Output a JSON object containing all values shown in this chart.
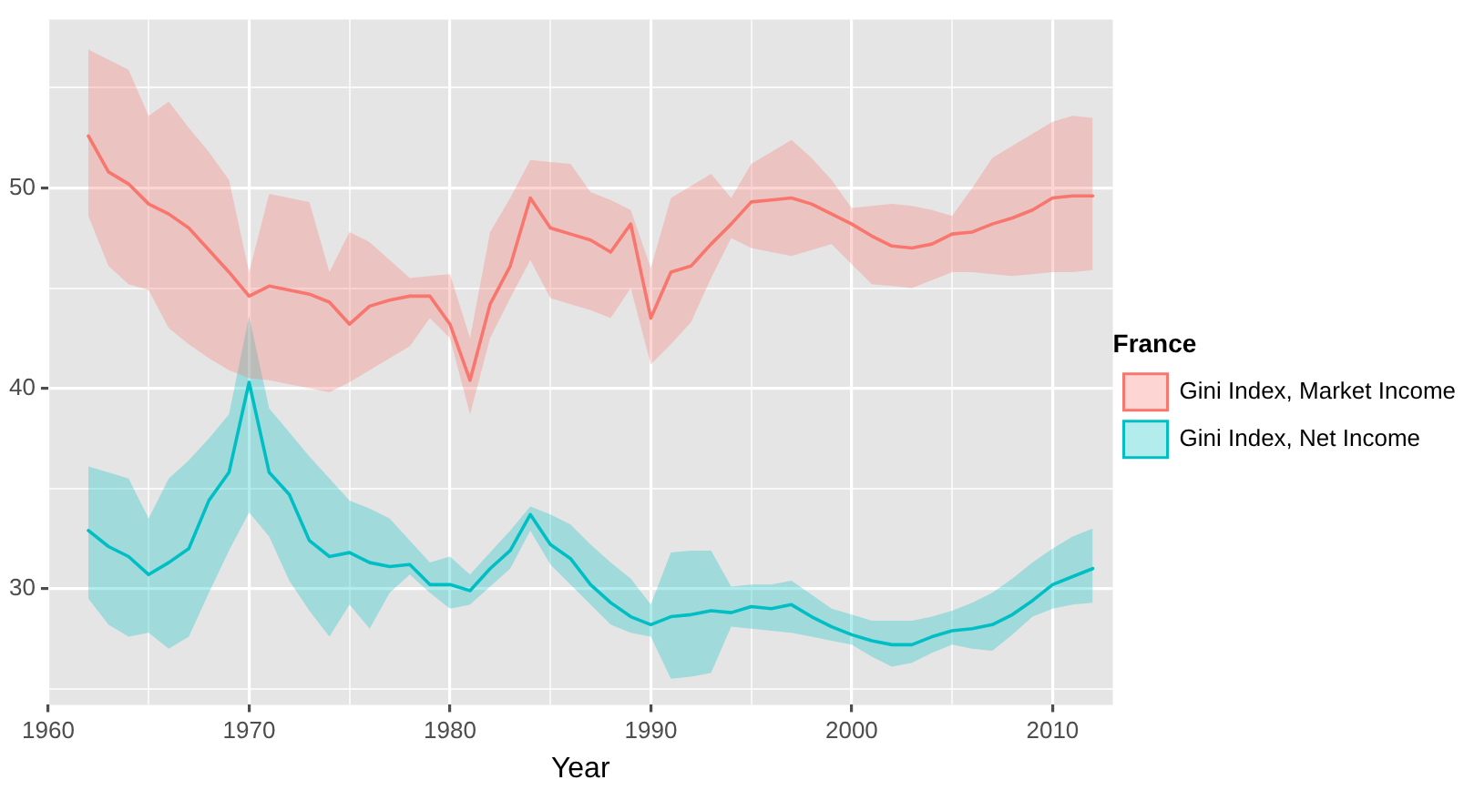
{
  "chart_data": {
    "type": "line",
    "xlabel": "Year",
    "legend_title": "France",
    "legend": "right",
    "grid": true,
    "marker": "none",
    "line_style": "solid",
    "x": [
      1962,
      1963,
      1964,
      1965,
      1966,
      1967,
      1968,
      1969,
      1970,
      1971,
      1972,
      1973,
      1974,
      1975,
      1976,
      1977,
      1978,
      1979,
      1980,
      1981,
      1982,
      1983,
      1984,
      1985,
      1986,
      1987,
      1988,
      1989,
      1990,
      1991,
      1992,
      1993,
      1994,
      1995,
      1996,
      1997,
      1998,
      1999,
      2000,
      2001,
      2002,
      2003,
      2004,
      2005,
      2006,
      2007,
      2008,
      2009,
      2010,
      2011,
      2012
    ],
    "xlim": [
      1960,
      2013
    ],
    "xticks": [
      1960,
      {
        "value": 1965,
        "label": null
      },
      1970,
      {
        "value": 1975,
        "label": null
      },
      1980,
      {
        "value": 1985,
        "label": null
      },
      1990,
      {
        "value": 1995,
        "label": null
      },
      2000,
      {
        "value": 2005,
        "label": null
      },
      2010
    ],
    "ylim": [
      24.2,
      58.4
    ],
    "yticks": [
      {
        "value": 25,
        "label": null
      },
      30,
      {
        "value": 35,
        "label": null
      },
      40,
      {
        "value": 45,
        "label": null
      },
      50,
      {
        "value": 55,
        "label": null
      }
    ],
    "series": [
      {
        "name": "Gini Index, Market Income",
        "color": "#f8766d",
        "values": [
          52.6,
          50.8,
          50.2,
          49.2,
          48.7,
          48.0,
          46.9,
          45.8,
          44.6,
          45.1,
          44.9,
          44.7,
          44.3,
          43.2,
          44.1,
          44.4,
          44.6,
          44.6,
          43.2,
          40.4,
          44.2,
          46.1,
          49.5,
          48.0,
          47.7,
          47.4,
          46.8,
          48.2,
          43.5,
          45.8,
          46.1,
          47.2,
          48.2,
          49.3,
          49.4,
          49.5,
          49.2,
          48.7,
          48.2,
          47.6,
          47.1,
          47.0,
          47.2,
          47.7,
          47.8,
          48.2,
          48.5,
          48.9,
          49.5,
          49.6,
          49.6
        ],
        "lower": [
          48.6,
          46.1,
          45.2,
          44.9,
          43.0,
          42.2,
          41.5,
          40.9,
          40.5,
          40.4,
          40.2,
          40.0,
          39.8,
          40.3,
          40.9,
          41.5,
          42.1,
          43.5,
          42.5,
          38.7,
          42.5,
          44.5,
          46.4,
          44.5,
          44.2,
          43.9,
          43.5,
          45.0,
          41.2,
          42.2,
          43.3,
          45.5,
          47.5,
          47.0,
          46.8,
          46.6,
          46.9,
          47.2,
          46.2,
          45.2,
          45.1,
          45.0,
          45.4,
          45.8,
          45.8,
          45.7,
          45.6,
          45.7,
          45.8,
          45.8,
          45.9
        ],
        "upper": [
          56.9,
          56.4,
          55.9,
          53.6,
          54.3,
          53.0,
          51.8,
          50.4,
          45.8,
          49.7,
          49.5,
          49.3,
          45.8,
          47.8,
          47.3,
          46.4,
          45.5,
          45.6,
          45.7,
          42.5,
          47.8,
          49.5,
          51.4,
          51.3,
          51.2,
          49.8,
          49.4,
          48.9,
          46.0,
          49.5,
          50.1,
          50.7,
          49.5,
          51.2,
          51.8,
          52.4,
          51.5,
          50.4,
          49.0,
          49.1,
          49.2,
          49.1,
          48.9,
          48.6,
          50.0,
          51.5,
          52.1,
          52.7,
          53.3,
          53.6,
          53.5
        ]
      },
      {
        "name": "Gini Index, Net Income",
        "color": "#00bfc4",
        "values": [
          32.9,
          32.1,
          31.6,
          30.7,
          31.3,
          32.0,
          34.4,
          35.8,
          40.3,
          35.8,
          34.7,
          32.4,
          31.6,
          31.8,
          31.3,
          31.1,
          31.2,
          30.2,
          30.2,
          29.9,
          31.0,
          31.9,
          33.7,
          32.2,
          31.5,
          30.2,
          29.3,
          28.6,
          28.2,
          28.6,
          28.7,
          28.9,
          28.8,
          29.1,
          29.0,
          29.2,
          28.6,
          28.1,
          27.7,
          27.4,
          27.2,
          27.2,
          27.6,
          27.9,
          28.0,
          28.2,
          28.7,
          29.4,
          30.2,
          30.6,
          31.0
        ],
        "lower": [
          29.5,
          28.2,
          27.6,
          27.8,
          27.0,
          27.6,
          29.8,
          31.9,
          33.8,
          32.6,
          30.4,
          28.9,
          27.6,
          29.2,
          28.0,
          29.8,
          30.7,
          29.8,
          29.0,
          29.2,
          30.1,
          31.0,
          32.9,
          31.2,
          30.2,
          29.2,
          28.2,
          27.8,
          27.6,
          25.5,
          25.6,
          25.8,
          28.1,
          28.0,
          27.9,
          27.8,
          27.6,
          27.4,
          27.2,
          26.6,
          26.1,
          26.3,
          26.8,
          27.2,
          27.0,
          26.9,
          27.7,
          28.6,
          29.0,
          29.2,
          29.3
        ],
        "upper": [
          36.1,
          35.8,
          35.5,
          33.5,
          35.5,
          36.4,
          37.5,
          38.7,
          43.6,
          39.0,
          37.8,
          36.6,
          35.5,
          34.4,
          34.0,
          33.5,
          32.4,
          31.3,
          31.6,
          30.7,
          31.8,
          32.9,
          34.1,
          33.7,
          33.2,
          32.2,
          31.3,
          30.5,
          29.2,
          31.8,
          31.9,
          31.9,
          30.1,
          30.2,
          30.2,
          30.4,
          29.7,
          29.0,
          28.7,
          28.4,
          28.4,
          28.4,
          28.6,
          28.9,
          29.3,
          29.8,
          30.5,
          31.3,
          32.0,
          32.6,
          33.0
        ]
      }
    ]
  }
}
